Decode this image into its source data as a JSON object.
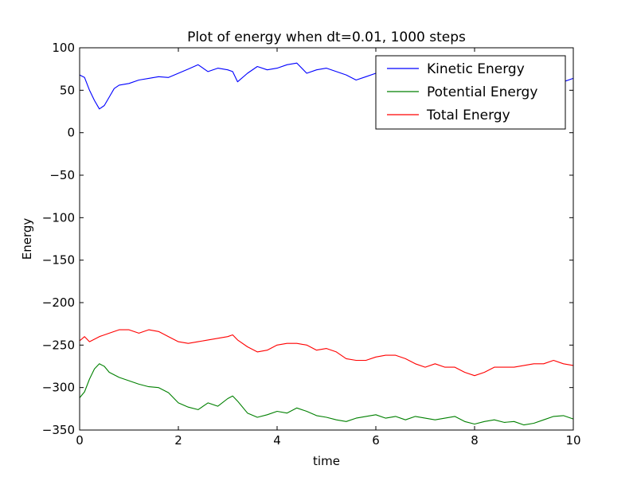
{
  "chart_data": {
    "type": "line",
    "title": "Plot of energy when dt=0.01, 1000 steps",
    "xlabel": "time",
    "ylabel": "Energy",
    "xlim": [
      0,
      10
    ],
    "ylim": [
      -350,
      100
    ],
    "xticks": [
      0,
      2,
      4,
      6,
      8,
      10
    ],
    "xtick_labels": [
      "0",
      "2",
      "4",
      "6",
      "8",
      "10"
    ],
    "yticks": [
      100,
      50,
      0,
      -50,
      -100,
      -150,
      -200,
      -250,
      -300,
      -350
    ],
    "ytick_labels": [
      "100",
      "50",
      "0",
      "−50",
      "−100",
      "−150",
      "−200",
      "−250",
      "−300",
      "−350"
    ],
    "grid": false,
    "legend_position": "top-right",
    "series": [
      {
        "name": "Kinetic Energy",
        "color": "#0000ff",
        "x": [
          0,
          0.1,
          0.2,
          0.3,
          0.4,
          0.5,
          0.6,
          0.7,
          0.8,
          1.0,
          1.2,
          1.4,
          1.6,
          1.8,
          2.0,
          2.2,
          2.4,
          2.6,
          2.8,
          3.0,
          3.1,
          3.2,
          3.4,
          3.6,
          3.8,
          4.0,
          4.2,
          4.4,
          4.6,
          4.8,
          5.0,
          5.2,
          5.4,
          5.6,
          5.8,
          6.0,
          6.2,
          9.6,
          9.8,
          10.0
        ],
        "y": [
          68,
          65,
          50,
          38,
          28,
          32,
          42,
          52,
          56,
          58,
          62,
          64,
          66,
          65,
          70,
          75,
          80,
          72,
          76,
          74,
          72,
          60,
          70,
          78,
          74,
          76,
          80,
          82,
          70,
          74,
          76,
          72,
          68,
          62,
          66,
          70,
          72,
          56,
          60,
          64
        ]
      },
      {
        "name": "Potential Energy",
        "color": "#008000",
        "x": [
          0,
          0.1,
          0.2,
          0.3,
          0.4,
          0.5,
          0.6,
          0.8,
          1.0,
          1.2,
          1.4,
          1.6,
          1.8,
          2.0,
          2.2,
          2.4,
          2.6,
          2.8,
          3.0,
          3.1,
          3.2,
          3.4,
          3.6,
          3.8,
          4.0,
          4.2,
          4.4,
          4.6,
          4.8,
          5.0,
          5.2,
          5.4,
          5.6,
          5.8,
          6.0,
          6.2,
          6.4,
          6.6,
          6.8,
          7.0,
          7.2,
          7.4,
          7.6,
          7.8,
          8.0,
          8.2,
          8.4,
          8.6,
          8.8,
          9.0,
          9.2,
          9.4,
          9.6,
          9.8,
          10.0
        ],
        "y": [
          -312,
          -305,
          -290,
          -278,
          -272,
          -275,
          -282,
          -288,
          -292,
          -296,
          -299,
          -300,
          -306,
          -318,
          -323,
          -326,
          -318,
          -322,
          -313,
          -310,
          -316,
          -330,
          -335,
          -332,
          -328,
          -330,
          -324,
          -328,
          -333,
          -335,
          -338,
          -340,
          -336,
          -334,
          -332,
          -336,
          -334,
          -338,
          -334,
          -336,
          -338,
          -336,
          -334,
          -340,
          -343,
          -340,
          -338,
          -341,
          -340,
          -344,
          -342,
          -338,
          -334,
          -333,
          -337
        ]
      },
      {
        "name": "Total Energy",
        "color": "#ff0000",
        "x": [
          0,
          0.1,
          0.2,
          0.4,
          0.6,
          0.8,
          1.0,
          1.2,
          1.4,
          1.6,
          1.8,
          2.0,
          2.2,
          2.4,
          2.6,
          2.8,
          3.0,
          3.1,
          3.2,
          3.4,
          3.6,
          3.8,
          4.0,
          4.2,
          4.4,
          4.6,
          4.8,
          5.0,
          5.2,
          5.4,
          5.6,
          5.8,
          6.0,
          6.2,
          6.4,
          6.6,
          6.8,
          7.0,
          7.2,
          7.4,
          7.6,
          7.8,
          8.0,
          8.2,
          8.4,
          8.6,
          8.8,
          9.0,
          9.2,
          9.4,
          9.6,
          9.8,
          10.0
        ],
        "y": [
          -245,
          -240,
          -246,
          -240,
          -236,
          -232,
          -232,
          -236,
          -232,
          -234,
          -240,
          -246,
          -248,
          -246,
          -244,
          -242,
          -240,
          -238,
          -244,
          -252,
          -258,
          -256,
          -250,
          -248,
          -248,
          -250,
          -256,
          -254,
          -258,
          -266,
          -268,
          -268,
          -264,
          -262,
          -262,
          -266,
          -272,
          -276,
          -272,
          -276,
          -276,
          -282,
          -286,
          -282,
          -276,
          -276,
          -276,
          -274,
          -272,
          -272,
          -268,
          -272,
          -274
        ]
      }
    ]
  }
}
